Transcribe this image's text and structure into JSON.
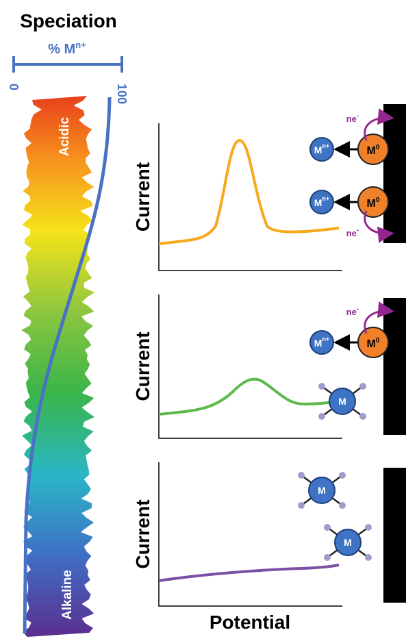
{
  "title": "Speciation",
  "scale": {
    "label": "% M",
    "label_superscript": "n+",
    "min": 0,
    "max": 100
  },
  "band_labels": {
    "acidic": "Acidic",
    "alkaline": "Alkaline"
  },
  "panels": [
    {
      "y_label": "Current"
    },
    {
      "y_label": "Current"
    },
    {
      "y_label": "Current"
    }
  ],
  "x_label": "Potential",
  "species": {
    "ion": {
      "symbol": "M",
      "charge": "n+"
    },
    "metal": {
      "symbol": "M",
      "oxidation": "0"
    },
    "complex": {
      "symbol": "M"
    },
    "electrons": {
      "text": "ne",
      "charge": "-"
    }
  }
}
